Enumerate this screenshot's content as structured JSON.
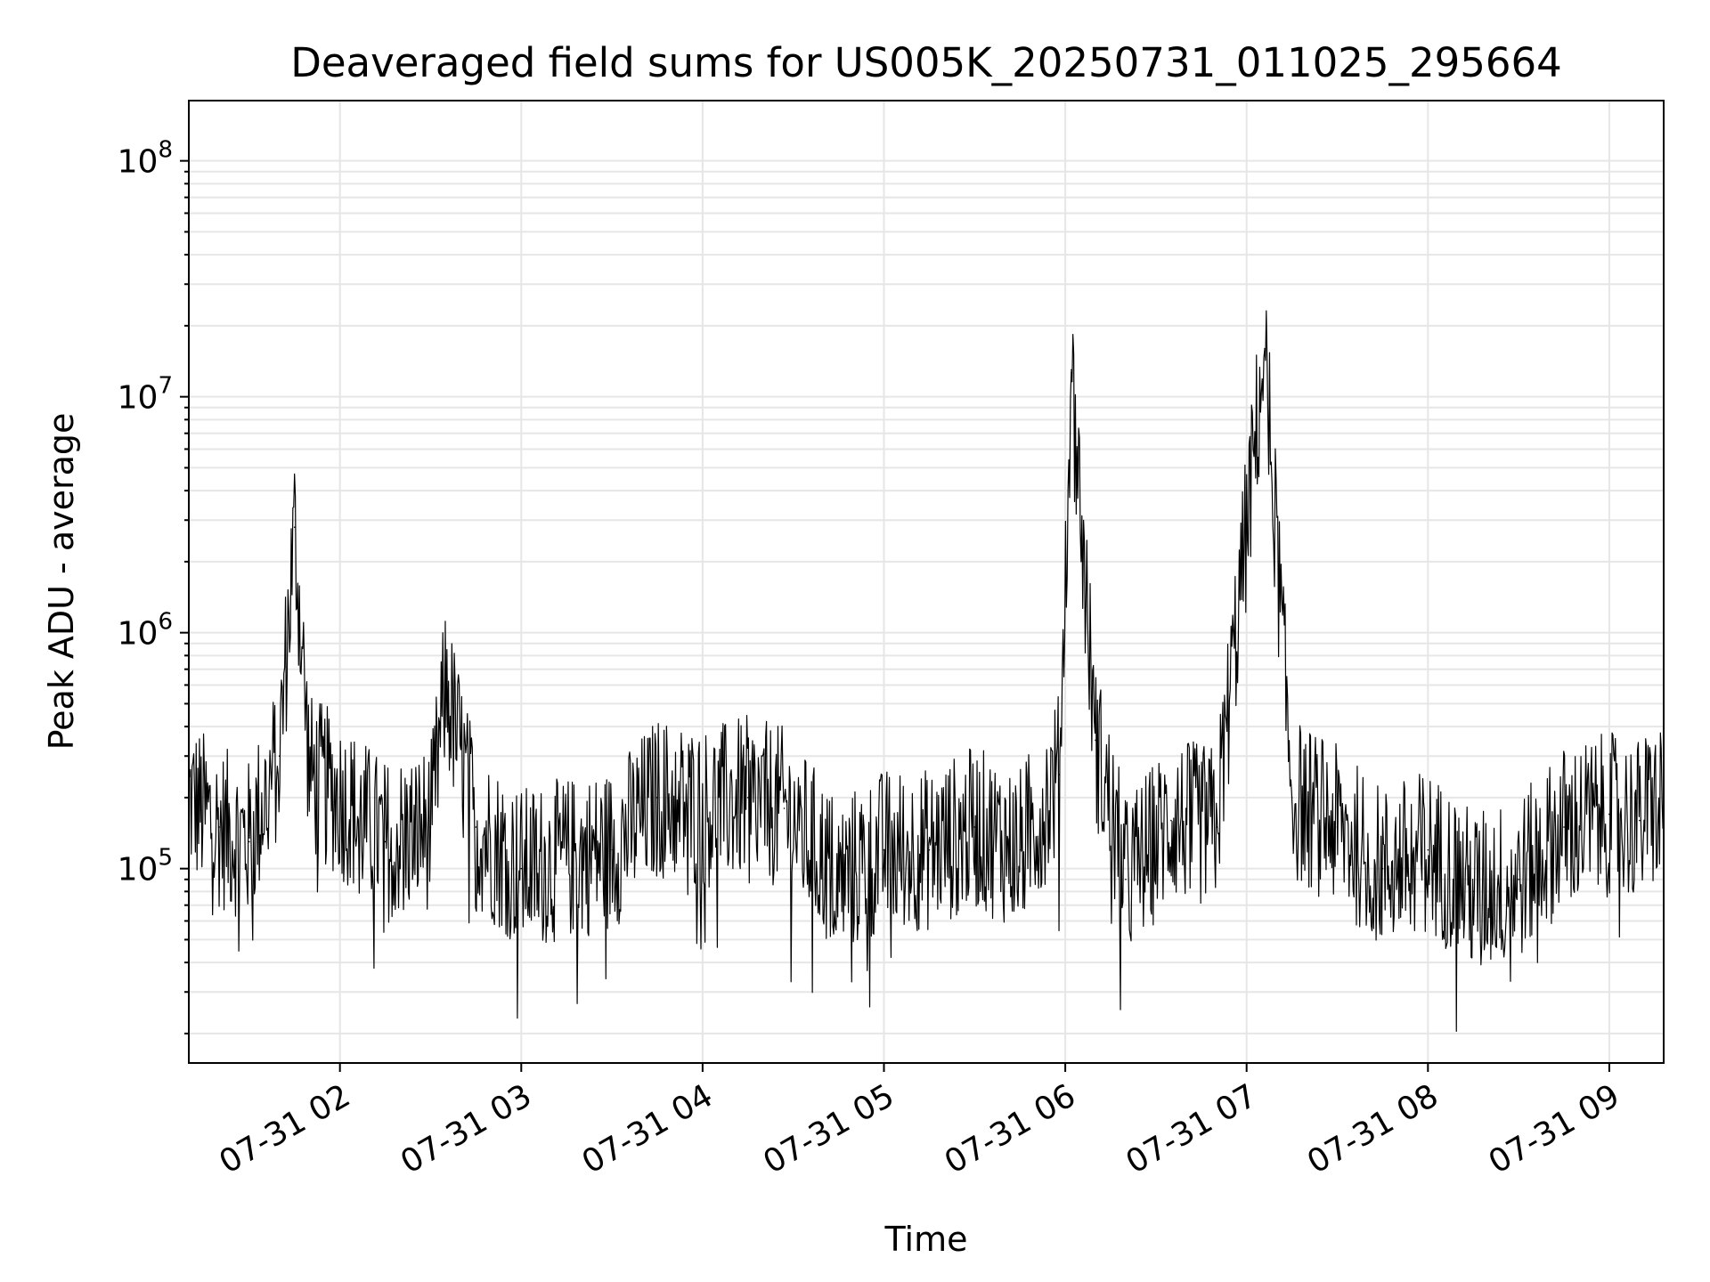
{
  "chart_data": {
    "type": "line",
    "title": "Deaveraged field sums for US005K_20250731_011025_295664",
    "xlabel": "Time",
    "ylabel": "Peak ADU - average",
    "y_scale": "log",
    "ylim": [
      15000,
      180000000
    ],
    "xlim": [
      "2025-07-31 01:10",
      "2025-07-31 09:18"
    ],
    "x_ticks": [
      "07-31 02",
      "07-31 03",
      "07-31 04",
      "07-31 05",
      "07-31 06",
      "07-31 07",
      "07-31 08",
      "07-31 09"
    ],
    "y_ticks": [
      "10^5",
      "10^6",
      "10^7",
      "10^8"
    ],
    "grid": true,
    "line_color": "#000000",
    "grid_color": "#e6e6e6",
    "series": [
      {
        "x": [
          "2025-07-31 01:10",
          "2025-07-31 01:20",
          "2025-07-31 01:30",
          "2025-07-31 01:40",
          "2025-07-31 01:45",
          "2025-07-31 01:50",
          "2025-07-31 02:00",
          "2025-07-31 02:15",
          "2025-07-31 02:30",
          "2025-07-31 02:35",
          "2025-07-31 02:45",
          "2025-07-31 03:00",
          "2025-07-31 03:15",
          "2025-07-31 03:30",
          "2025-07-31 03:45",
          "2025-07-31 04:00",
          "2025-07-31 04:15",
          "2025-07-31 04:27",
          "2025-07-31 04:45",
          "2025-07-31 05:00",
          "2025-07-31 05:15",
          "2025-07-31 05:30",
          "2025-07-31 05:45",
          "2025-07-31 05:58",
          "2025-07-31 06:02",
          "2025-07-31 06:10",
          "2025-07-31 06:20",
          "2025-07-31 06:35",
          "2025-07-31 06:50",
          "2025-07-31 07:06",
          "2025-07-31 07:15",
          "2025-07-31 07:30",
          "2025-07-31 07:45",
          "2025-07-31 08:00",
          "2025-07-31 08:15",
          "2025-07-31 08:30",
          "2025-07-31 08:45",
          "2025-07-31 09:00",
          "2025-07-31 09:10",
          "2025-07-31 09:18"
        ],
        "y": [
          200000,
          150000,
          130000,
          300000,
          2800000,
          250000,
          200000,
          130000,
          150000,
          600000,
          150000,
          100000,
          110000,
          120000,
          200000,
          180000,
          200000,
          180000,
          90000,
          120000,
          120000,
          150000,
          120000,
          250000,
          13000000,
          350000,
          90000,
          160000,
          150000,
          16000000,
          200000,
          150000,
          100000,
          120000,
          80000,
          90000,
          150000,
          170000,
          160000,
          200000
        ]
      }
    ]
  }
}
